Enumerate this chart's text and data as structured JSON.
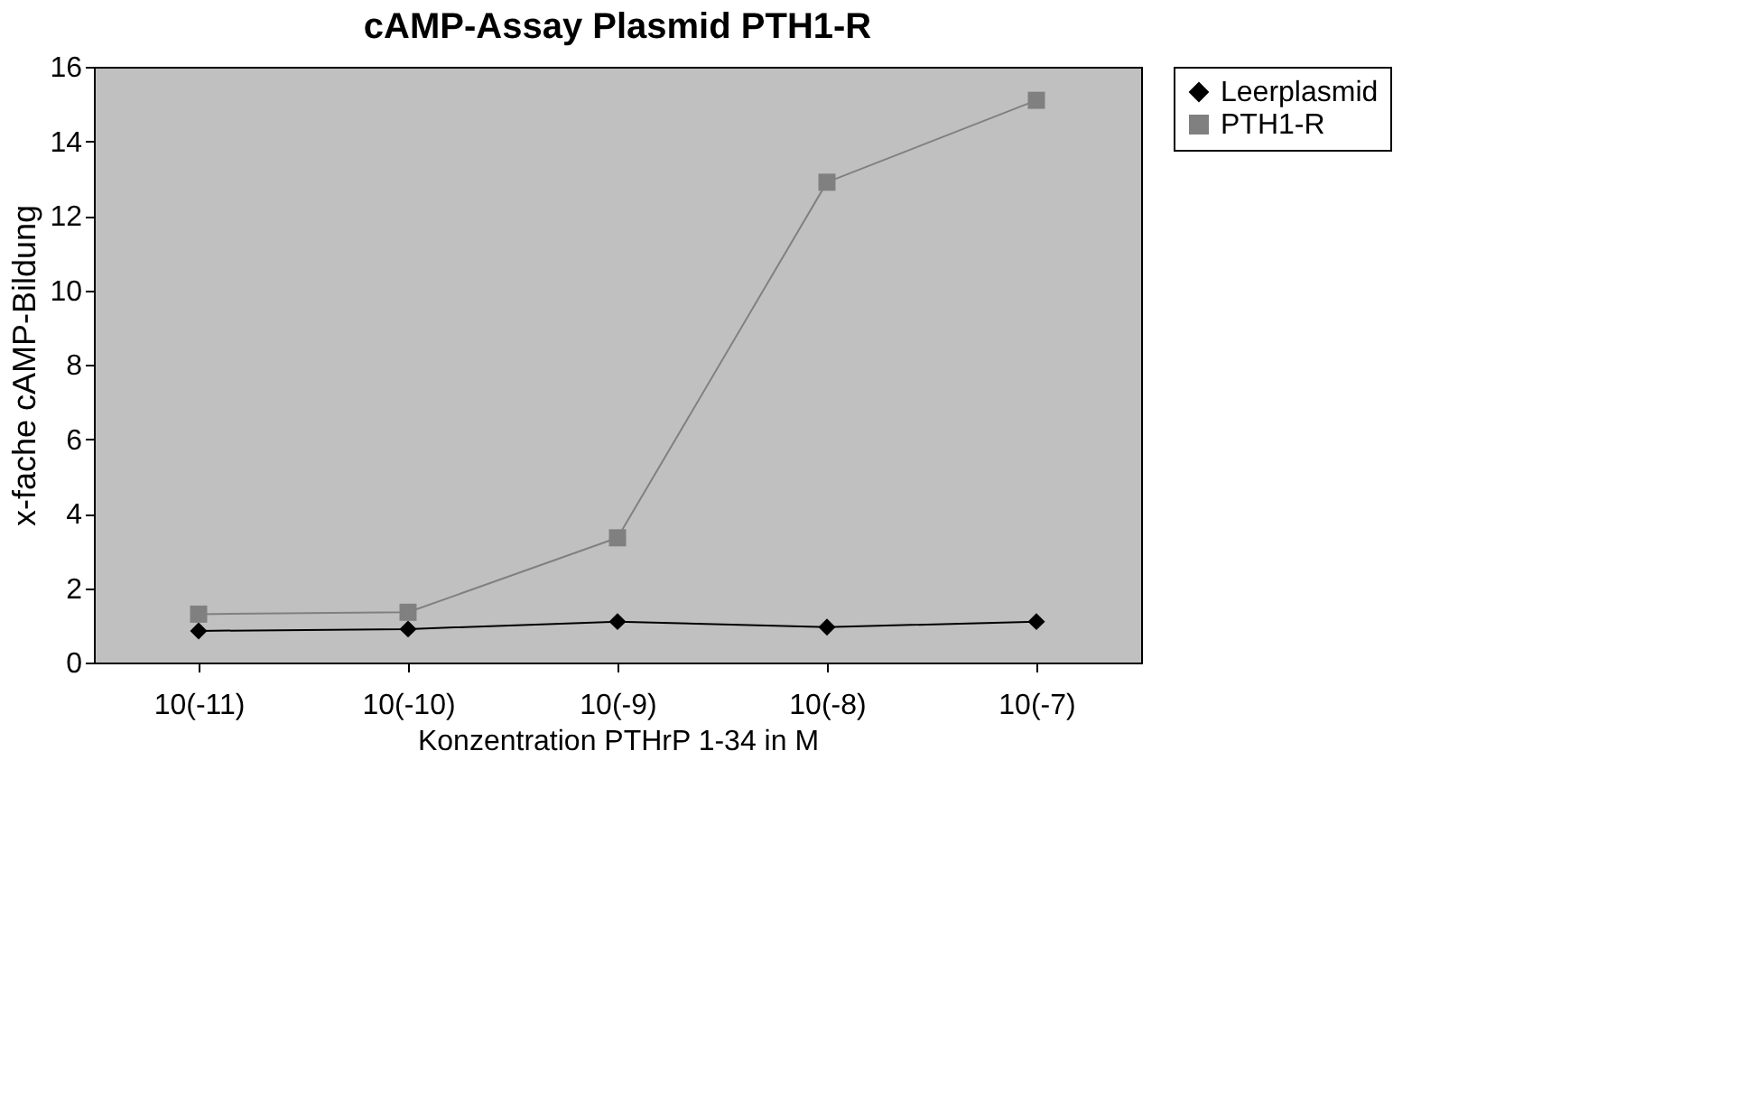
{
  "chart_data": {
    "type": "line",
    "title": "cAMP-Assay Plasmid PTH1-R",
    "xlabel": "Konzentration PTHrP 1-34 in M",
    "ylabel": "x-fache cAMP-Bildung",
    "categories": [
      "10(-11)",
      "10(-10)",
      "10(-9)",
      "10(-8)",
      "10(-7)"
    ],
    "series": [
      {
        "name": "Leerplasmid",
        "color": "#000000",
        "marker": "diamond",
        "values": [
          0.85,
          0.9,
          1.1,
          0.95,
          1.1
        ]
      },
      {
        "name": "PTH1-R",
        "color": "#808080",
        "marker": "square",
        "values": [
          1.3,
          1.35,
          3.35,
          12.9,
          15.1
        ]
      }
    ],
    "ylim": [
      0,
      16
    ],
    "yticks": [
      0,
      2,
      4,
      6,
      8,
      10,
      12,
      14,
      16
    ],
    "grid": false,
    "legend": "right",
    "line_style": "solid"
  }
}
